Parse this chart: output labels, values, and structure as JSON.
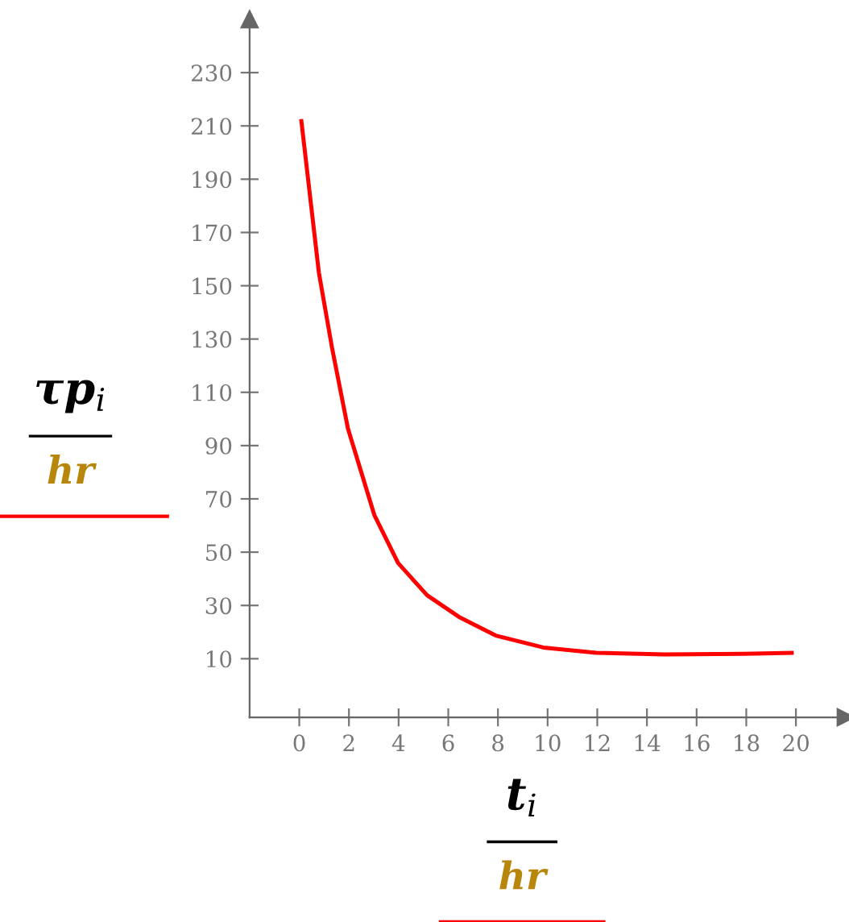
{
  "chart_data": {
    "type": "line",
    "x": [
      0.085,
      0.79,
      1.32,
      1.96,
      3.02,
      3.98,
      5.15,
      6.43,
      7.91,
      9.83,
      11.96,
      14.72,
      17.9,
      19.83
    ],
    "series": [
      {
        "color": "#ff0000",
        "values": [
          211.8,
          154.9,
          126.7,
          96.4,
          64,
          45.9,
          33.8,
          25.7,
          18.7,
          14.2,
          12.2,
          11.6,
          11.8,
          12.2
        ]
      }
    ],
    "xlim": [
      -2,
      22
    ],
    "ylim": [
      -12,
      250
    ],
    "xticks": [
      0,
      2,
      4,
      6,
      8,
      10,
      12,
      14,
      16,
      18,
      20
    ],
    "yticks": [
      10,
      30,
      50,
      70,
      90,
      110,
      130,
      150,
      170,
      190,
      210,
      230
    ],
    "xlabel": "t$_{i}$",
    "ylabel": "τp$_{i}$",
    "annotations": [
      "hr",
      "hr"
    ],
    "grid": false,
    "marker": "none",
    "line_style": "solid"
  }
}
